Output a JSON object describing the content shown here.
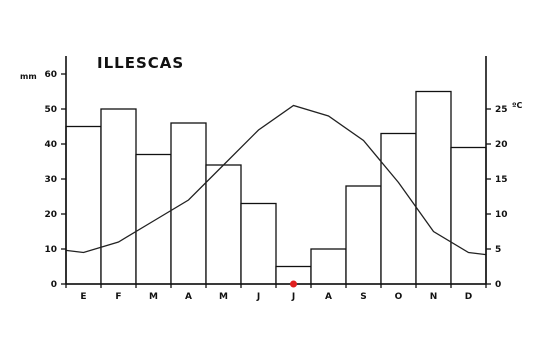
{
  "chart_data": {
    "type": "bar+line",
    "title": "ILLESCAS",
    "categories": [
      "E",
      "F",
      "M",
      "A",
      "M",
      "J",
      "J",
      "A",
      "S",
      "O",
      "N",
      "D"
    ],
    "series": [
      {
        "type": "bar",
        "axis": "left",
        "values": [
          45,
          50,
          37,
          46,
          34,
          23,
          5,
          10,
          28,
          43,
          55,
          39
        ]
      },
      {
        "type": "line",
        "axis": "right",
        "values": [
          4.5,
          6,
          9,
          12,
          17,
          22,
          25.5,
          24,
          20.5,
          14.5,
          7.5,
          4.5
        ]
      }
    ],
    "left_axis": {
      "unit": "mm",
      "ylim": [
        0,
        60
      ],
      "ticks": [
        0,
        10,
        20,
        30,
        40,
        50,
        60
      ]
    },
    "right_axis": {
      "unit": "ºC",
      "ylim": [
        0,
        30
      ],
      "ticks": [
        0,
        5,
        10,
        15,
        20,
        25
      ]
    },
    "grid": false,
    "legend": "none",
    "marker_color": "#e02020"
  }
}
